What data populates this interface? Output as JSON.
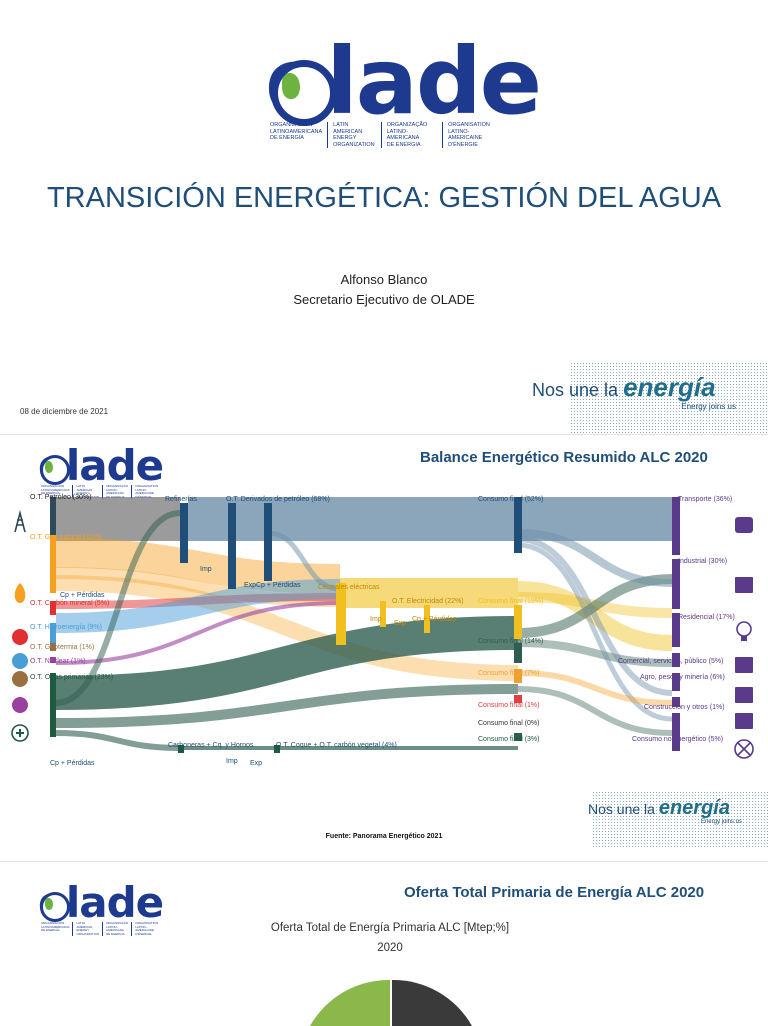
{
  "colors": {
    "brand_blue": "#1d3a8f",
    "title_blue": "#1f4e79",
    "olade_green": "#6db33f"
  },
  "slide1": {
    "logo": {
      "word": "olade",
      "subtitles": [
        "ORGANIZACIÓN\nLATINOAMERICANA\nDE ENERGÍA",
        "LATIN AMERICAN\nENERGY\nORGANIZATION",
        "ORGANIZAÇÃO\nLATINO-AMERICANA\nDE ENERGIA",
        "ORGANISATION\nLATINO-AMERICAINE\nD'ÉNERGIE"
      ]
    },
    "title": "TRANSICIÓN ENERGÉTICA: GESTIÓN DEL AGUA",
    "author": "Alfonso Blanco",
    "role": "Secretario Ejecutivo de OLADE",
    "date": "08 de diciembre de 2021",
    "tagline": {
      "prefix": "Nos une la ",
      "highlight": "energía",
      "sub": "Energy joins us"
    }
  },
  "slide2": {
    "logo_word": "olade",
    "heading": "Balance Energético Resumido ALC 2020",
    "source": "Fuente: Panorama Energético 2021",
    "tagline": {
      "prefix": "Nos une la ",
      "highlight": "energía",
      "sub": "Energy joins us"
    },
    "left_icons": [
      "oil-derrick-icon",
      "flame-icon",
      "coal-icon",
      "hydro-icon",
      "geothermal-icon",
      "nuclear-icon",
      "plus-icon"
    ],
    "right_icons": [
      "bus-icon",
      "factory-icon",
      "lightbulb-icon",
      "building-icon",
      "tractor-icon",
      "excavator-icon",
      "fan-icon"
    ],
    "sankey": {
      "sources": [
        {
          "label": "O.T. Petróleo (30%)",
          "color": "#2e4a5a"
        },
        {
          "label": "O.T. Gas natural (31%)",
          "color": "#f5a020"
        },
        {
          "label": "O.T. Carbón mineral (5%)",
          "color": "#e03030"
        },
        {
          "label": "O.T. Hidroenergía (9%)",
          "color": "#4a9ed8"
        },
        {
          "label": "O.T. Geotermia (1%)",
          "color": "#9a7040"
        },
        {
          "label": "O.T. Nuclear (1%)",
          "color": "#9a40a0"
        },
        {
          "label": "O.T. Otras primarias (23%)",
          "color": "#1e5a40"
        }
      ],
      "middle": [
        {
          "label": "Refinerías"
        },
        {
          "label": "O.T. Derivados de petróleo (68%)"
        },
        {
          "label": "Imp"
        },
        {
          "label": "Exp"
        },
        {
          "label": "Cp + Pérdidas"
        },
        {
          "label": "Cp + Pérdidas"
        },
        {
          "label": "Centrales eléctricas"
        },
        {
          "label": "O.T. Electricidad (22%)"
        },
        {
          "label": "Imp"
        },
        {
          "label": "Exp"
        },
        {
          "label": "Cp + Pérdidas"
        },
        {
          "label": "Carboneras + Cq. y Hornos"
        },
        {
          "label": "Imp"
        },
        {
          "label": "Exp"
        },
        {
          "label": "O.T. Coque + O.T. carbón vegetal (4%)"
        },
        {
          "label": "Cp + Pérdidas"
        }
      ],
      "consumption": [
        {
          "label": "Consumo final (52%)"
        },
        {
          "label": "Consumo final (19%)"
        },
        {
          "label": "Consumo final (14%)"
        },
        {
          "label": "Consumo final (7%)"
        },
        {
          "label": "Consumo final (1%)"
        },
        {
          "label": "Consumo final (0%)"
        },
        {
          "label": "Consumo final (3%)"
        }
      ],
      "sectors": [
        {
          "label": "Transporte (36%)"
        },
        {
          "label": "Industrial (30%)"
        },
        {
          "label": "Residencial (17%)"
        },
        {
          "label": "Comercial, servicios, público (5%)"
        },
        {
          "label": "Agro, pesca y minería (6%)"
        },
        {
          "label": "Construcción y otros (1%)"
        },
        {
          "label": "Consumo no energético (5%)"
        }
      ]
    }
  },
  "slide3": {
    "logo_word": "olade",
    "heading": "Oferta Total Primaria de Energía ALC 2020",
    "chart_title": "Oferta Total de Energía Primaria ALC [Mtep;%]",
    "chart_year": "2020",
    "pie_colors": [
      "#8bb84a",
      "#3a3a3a"
    ]
  }
}
